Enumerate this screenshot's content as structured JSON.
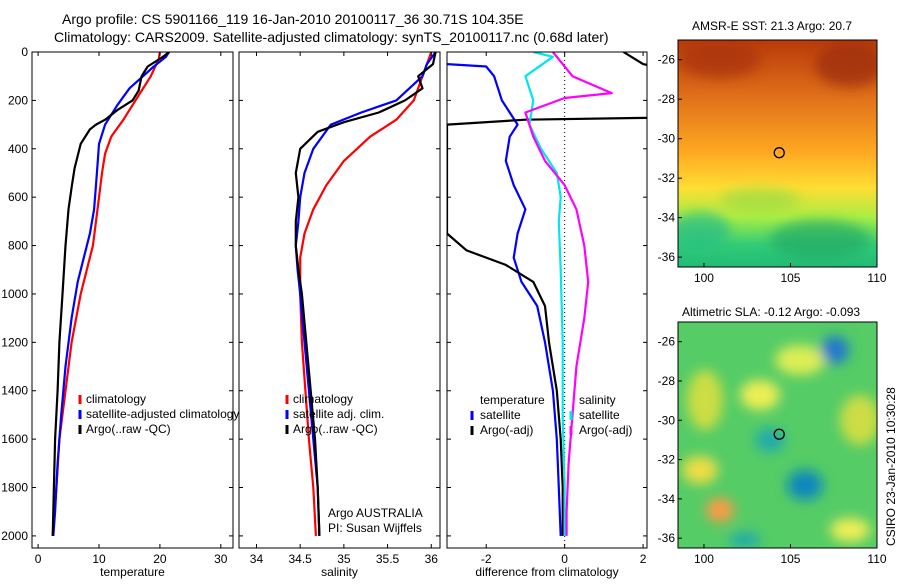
{
  "title_line1": "Argo profile: CS 5901166_119 16-Jan-2010 20100117_36 30.71S 104.35E",
  "title_line2": "Climatology: CARS2009. Satellite-adjusted climatology: synTS_20100117.nc (0.68d later)",
  "watermark": "CSIRO 23-Jan-2010 10:30:28",
  "argo_label": "Argo AUSTRALIA",
  "pi_label": "PI: Susan Wijffels",
  "colors": {
    "climatology": "#ff0000",
    "satellite": "#0000ff",
    "argo": "#000000",
    "sal_satellite": "#00e5ee",
    "sal_argo": "#ff00ff"
  },
  "chart_data": [
    {
      "type": "line",
      "id": "temperature",
      "xlabel": "temperature",
      "ylabel": "",
      "xlim": [
        -1,
        32
      ],
      "ylim": [
        2050,
        0
      ],
      "xticks": [
        0,
        10,
        20,
        30
      ],
      "yticks": [
        0,
        200,
        400,
        600,
        800,
        1000,
        1200,
        1400,
        1600,
        1800,
        2000
      ],
      "legend": [
        "climatology",
        "satellite-adjusted climatology",
        "Argo(..raw -QC)"
      ],
      "series": [
        {
          "name": "climatology",
          "color": "#ff0000",
          "points": [
            [
              20,
              0
            ],
            [
              19.8,
              30
            ],
            [
              18.5,
              100
            ],
            [
              16,
              200
            ],
            [
              14,
              280
            ],
            [
              12,
              350
            ],
            [
              11,
              420
            ],
            [
              10.5,
              500
            ],
            [
              10,
              600
            ],
            [
              9.5,
              700
            ],
            [
              9,
              800
            ],
            [
              8,
              900
            ],
            [
              7,
              1000
            ],
            [
              5.5,
              1200
            ],
            [
              4.5,
              1400
            ],
            [
              3.5,
              1600
            ],
            [
              3,
              1800
            ],
            [
              2.4,
              2000
            ]
          ]
        },
        {
          "name": "satellite",
          "color": "#0000ff",
          "points": [
            [
              21.5,
              0
            ],
            [
              21,
              20
            ],
            [
              19,
              60
            ],
            [
              15,
              150
            ],
            [
              13,
              220
            ],
            [
              11,
              300
            ],
            [
              10,
              380
            ],
            [
              9.8,
              450
            ],
            [
              9.5,
              550
            ],
            [
              9.2,
              650
            ],
            [
              8.5,
              750
            ],
            [
              7.5,
              850
            ],
            [
              6.5,
              950
            ],
            [
              5.5,
              1100
            ],
            [
              4.5,
              1300
            ],
            [
              3.8,
              1500
            ],
            [
              3.2,
              1700
            ],
            [
              2.8,
              1900
            ],
            [
              2.5,
              2000
            ]
          ]
        },
        {
          "name": "argo",
          "color": "#000000",
          "points": [
            [
              21.5,
              0
            ],
            [
              20.5,
              20
            ],
            [
              18,
              60
            ],
            [
              17,
              100
            ],
            [
              16.5,
              160
            ],
            [
              15.5,
              200
            ],
            [
              13,
              240
            ],
            [
              11,
              280
            ],
            [
              9.5,
              300
            ],
            [
              8.5,
              320
            ],
            [
              7,
              380
            ],
            [
              6,
              480
            ],
            [
              5.5,
              560
            ],
            [
              5,
              650
            ],
            [
              4.5,
              800
            ],
            [
              4,
              1000
            ],
            [
              3.5,
              1200
            ],
            [
              3.2,
              1400
            ],
            [
              2.8,
              1600
            ],
            [
              2.6,
              1800
            ],
            [
              2.4,
              2000
            ]
          ]
        }
      ]
    },
    {
      "type": "line",
      "id": "salinity",
      "xlabel": "salinity",
      "ylabel": "",
      "xlim": [
        33.8,
        36.1
      ],
      "ylim": [
        2050,
        0
      ],
      "xticks": [
        34,
        34.5,
        35,
        35.5,
        36
      ],
      "xtick_labels": [
        "34",
        "34.5",
        "35",
        "35.5",
        "36"
      ],
      "yticks": [
        0,
        200,
        400,
        600,
        800,
        1000,
        1200,
        1400,
        1600,
        1800,
        2000
      ],
      "legend": [
        "climatology",
        "satellite adj. clim.",
        "Argo(..raw -QC)"
      ],
      "series": [
        {
          "name": "climatology",
          "color": "#ff0000",
          "points": [
            [
              36,
              0
            ],
            [
              35.95,
              50
            ],
            [
              35.9,
              100
            ],
            [
              35.8,
              200
            ],
            [
              35.6,
              280
            ],
            [
              35.3,
              350
            ],
            [
              35,
              450
            ],
            [
              34.8,
              550
            ],
            [
              34.65,
              650
            ],
            [
              34.55,
              750
            ],
            [
              34.5,
              850
            ],
            [
              34.5,
              1000
            ],
            [
              34.52,
              1200
            ],
            [
              34.56,
              1400
            ],
            [
              34.6,
              1600
            ],
            [
              34.65,
              1800
            ],
            [
              34.68,
              2000
            ]
          ]
        },
        {
          "name": "satellite",
          "color": "#0000ff",
          "points": [
            [
              36.05,
              0
            ],
            [
              35.95,
              50
            ],
            [
              35.9,
              100
            ],
            [
              35.6,
              200
            ],
            [
              35.2,
              250
            ],
            [
              34.85,
              300
            ],
            [
              34.65,
              400
            ],
            [
              34.55,
              500
            ],
            [
              34.5,
              600
            ],
            [
              34.48,
              700
            ],
            [
              34.45,
              800
            ],
            [
              34.47,
              900
            ],
            [
              34.5,
              1000
            ],
            [
              34.55,
              1200
            ],
            [
              34.6,
              1400
            ],
            [
              34.65,
              1600
            ],
            [
              34.7,
              1800
            ],
            [
              34.72,
              2000
            ]
          ]
        },
        {
          "name": "argo",
          "color": "#000000",
          "points": [
            [
              36.05,
              0
            ],
            [
              36.02,
              50
            ],
            [
              35.85,
              100
            ],
            [
              35.9,
              150
            ],
            [
              35.7,
              200
            ],
            [
              35.4,
              250
            ],
            [
              35.0,
              290
            ],
            [
              34.7,
              330
            ],
            [
              34.5,
              400
            ],
            [
              34.45,
              500
            ],
            [
              34.48,
              600
            ],
            [
              34.45,
              700
            ],
            [
              34.45,
              800
            ],
            [
              34.48,
              900
            ],
            [
              34.52,
              1000
            ],
            [
              34.57,
              1200
            ],
            [
              34.62,
              1400
            ],
            [
              34.67,
              1600
            ],
            [
              34.7,
              1800
            ],
            [
              34.72,
              2000
            ]
          ]
        }
      ]
    },
    {
      "type": "line",
      "id": "difference",
      "xlabel": "difference from climatology",
      "ylabel": "",
      "xlim": [
        -3,
        2.1
      ],
      "ylim": [
        2050,
        0
      ],
      "xticks": [
        -2,
        0,
        2
      ],
      "yticks": [
        0,
        200,
        400,
        600,
        800,
        1000,
        1200,
        1400,
        1600,
        1800,
        2000
      ],
      "zero_line": true,
      "legend_groups": [
        {
          "heading": "temperature",
          "entries": [
            "satellite",
            "Argo(-adj)"
          ]
        },
        {
          "heading": "salinity",
          "entries": [
            "satellite",
            "Argo(-adj)"
          ]
        }
      ],
      "series": [
        {
          "name": "temperature satellite",
          "color": "#0000ff",
          "points": [
            [
              -3,
              50
            ],
            [
              -2,
              60
            ],
            [
              -1.8,
              100
            ],
            [
              -1.6,
              200
            ],
            [
              -1.2,
              300
            ],
            [
              -1.4,
              350
            ],
            [
              -1.5,
              450
            ],
            [
              -1.3,
              550
            ],
            [
              -1.0,
              650
            ],
            [
              -1.2,
              750
            ],
            [
              -1.3,
              850
            ],
            [
              -1.1,
              950
            ],
            [
              -0.7,
              1050
            ],
            [
              -0.5,
              1200
            ],
            [
              -0.3,
              1400
            ],
            [
              -0.2,
              1600
            ],
            [
              -0.15,
              1800
            ],
            [
              -0.1,
              2000
            ]
          ]
        },
        {
          "name": "temperature argo",
          "color": "#000000",
          "points": [
            [
              1.5,
              0
            ],
            [
              2.0,
              50
            ],
            [
              3,
              80
            ],
            [
              3,
              270
            ],
            [
              -1,
              280
            ],
            [
              -3,
              300
            ],
            [
              -3,
              750
            ],
            [
              -2.5,
              820
            ],
            [
              -1.5,
              880
            ],
            [
              -0.8,
              950
            ],
            [
              -0.5,
              1050
            ],
            [
              -0.4,
              1200
            ],
            [
              -0.2,
              1400
            ],
            [
              -0.1,
              1600
            ],
            [
              -0.05,
              1800
            ],
            [
              -0.05,
              2000
            ]
          ]
        },
        {
          "name": "salinity satellite",
          "color": "#00e5ee",
          "points": [
            [
              -0.8,
              0
            ],
            [
              -0.3,
              20
            ],
            [
              -1,
              100
            ],
            [
              -0.8,
              200
            ],
            [
              -0.9,
              300
            ],
            [
              -0.6,
              400
            ],
            [
              -0.2,
              500
            ],
            [
              -0.1,
              600
            ],
            [
              -0.15,
              700
            ],
            [
              -0.1,
              900
            ],
            [
              -0.05,
              1200
            ],
            [
              -0.05,
              1500
            ],
            [
              0,
              1800
            ],
            [
              0,
              2000
            ]
          ]
        },
        {
          "name": "salinity argo",
          "color": "#ff00ff",
          "points": [
            [
              -0.3,
              0
            ],
            [
              0.2,
              100
            ],
            [
              1.2,
              170
            ],
            [
              0,
              190
            ],
            [
              -1,
              250
            ],
            [
              -0.8,
              350
            ],
            [
              -0.5,
              450
            ],
            [
              0,
              550
            ],
            [
              0.3,
              650
            ],
            [
              0.5,
              800
            ],
            [
              0.6,
              950
            ],
            [
              0.5,
              1100
            ],
            [
              0.3,
              1300
            ],
            [
              0.2,
              1500
            ],
            [
              0.1,
              1700
            ],
            [
              0.05,
              1900
            ],
            [
              0.05,
              2000
            ]
          ]
        }
      ]
    },
    {
      "type": "heatmap",
      "id": "sst-map",
      "title": "AMSR-E SST: 21.3 Argo: 20.7",
      "xlim": [
        98.5,
        110
      ],
      "ylim": [
        -36.5,
        -25
      ],
      "xticks": [
        100,
        105,
        110
      ],
      "yticks": [
        -26,
        -28,
        -30,
        -32,
        -34,
        -36
      ],
      "marker": {
        "lon": 104.35,
        "lat": -30.71
      },
      "palette": [
        "#00aa55",
        "#ccff33",
        "#ffcc00",
        "#ff8800",
        "#cc4400",
        "#aa2200"
      ]
    },
    {
      "type": "heatmap",
      "id": "sla-map",
      "title": "Altimetric SLA: -0.12 Argo: -0.093",
      "xlim": [
        98.5,
        110
      ],
      "ylim": [
        -36.5,
        -25
      ],
      "xticks": [
        100,
        105,
        110
      ],
      "yticks": [
        -26,
        -28,
        -30,
        -32,
        -34,
        -36
      ],
      "marker": {
        "lon": 104.35,
        "lat": -30.71
      },
      "palette": [
        "#1177cc",
        "#22aaaa",
        "#44cc55",
        "#88dd44",
        "#eedd44",
        "#ff9944"
      ]
    }
  ]
}
